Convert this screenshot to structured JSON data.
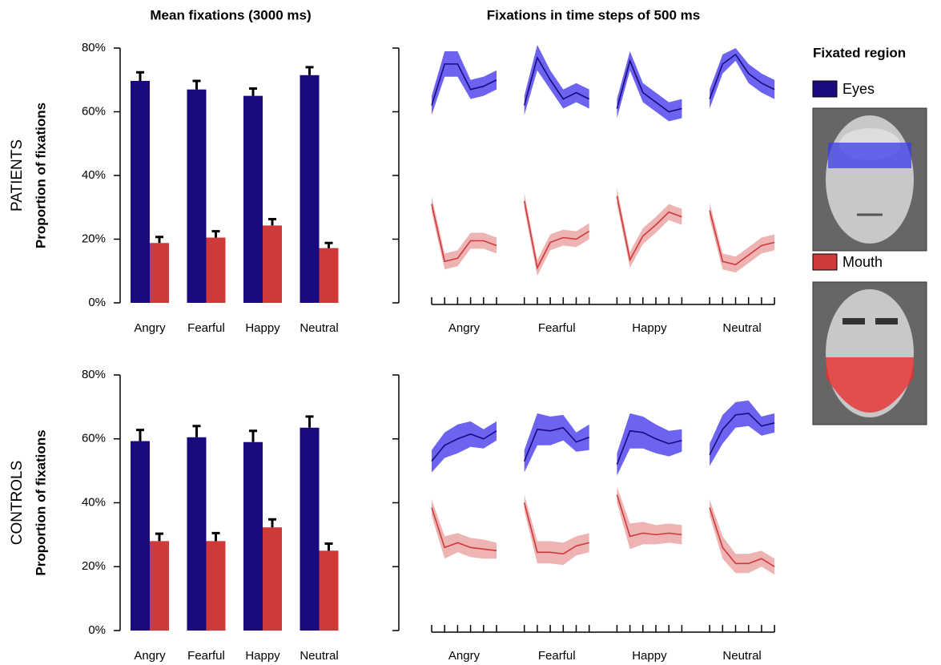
{
  "legend": {
    "title": "Fixated region"
  },
  "chart_data": [
    {
      "type": "bar",
      "title": "Mean fixations (3000 ms)",
      "row_label": "PATIENTS",
      "y_label": "Proportion of fixations",
      "categories": [
        "Angry",
        "Fearful",
        "Happy",
        "Neutral"
      ],
      "series": [
        {
          "name": "Eyes",
          "color": "#1a0a80",
          "values": [
            69.7,
            67,
            65,
            71.5
          ],
          "errors": [
            2.7,
            2.7,
            2.3,
            2.5
          ]
        },
        {
          "name": "Mouth",
          "color": "#d0393a",
          "values": [
            18.8,
            20.5,
            24.3,
            17.2
          ],
          "errors": [
            1.9,
            2,
            2,
            1.6
          ]
        }
      ],
      "ylim": [
        0,
        80
      ],
      "yticks": [
        {
          "value": 0,
          "label": "0%"
        },
        {
          "value": 20,
          "label": "20%"
        },
        {
          "value": 40,
          "label": "40%"
        },
        {
          "value": 60,
          "label": "60%"
        },
        {
          "value": 80,
          "label": "80%"
        }
      ]
    },
    {
      "type": "line",
      "title": "Fixations in time steps of 500 ms",
      "categories": [
        "Angry",
        "Fearful",
        "Happy",
        "Neutral"
      ],
      "series": [
        {
          "color": "#1a0a80",
          "band_color": "#5348ee",
          "values": [
            [
              62,
              75,
              75,
              67,
              68,
              70
            ],
            [
              62,
              77,
              70,
              64,
              66,
              64
            ],
            [
              61,
              76,
              66,
              63,
              60,
              61
            ],
            [
              64,
              75,
              78,
              72,
              69,
              67
            ]
          ],
          "errors": [
            [
              3,
              4,
              4,
              3,
              3,
              3
            ],
            [
              3,
              4,
              3,
              3,
              3,
              3
            ],
            [
              3,
              3,
              3,
              3,
              3,
              3
            ],
            [
              3,
              3,
              2,
              3,
              3,
              3
            ]
          ]
        },
        {
          "color": "#d0393a",
          "band_color": "#eba6a6",
          "values": [
            [
              31,
              13,
              14,
              19.5,
              19.5,
              18
            ],
            [
              32,
              11,
              19,
              20.5,
              20,
              22.5
            ],
            [
              33.5,
              13.5,
              21,
              24.5,
              28.5,
              27
            ],
            [
              29,
              13,
              12,
              15,
              18,
              19
            ]
          ],
          "errors": [
            [
              2.5,
              2.5,
              2.5,
              2.5,
              2.5,
              2.5
            ],
            [
              2.5,
              2.5,
              2.5,
              2.5,
              2.5,
              2.5
            ],
            [
              2.5,
              2.5,
              2.5,
              2.5,
              2.5,
              2.5
            ],
            [
              2.5,
              2.5,
              2.5,
              2.5,
              2.5,
              2.5
            ]
          ]
        }
      ],
      "ylim": [
        0,
        80
      ],
      "yticks": [
        0,
        20,
        40,
        60,
        80
      ]
    },
    {
      "type": "bar",
      "row_label": "CONTROLS",
      "y_label": "Proportion of fixations",
      "categories": [
        "Angry",
        "Fearful",
        "Happy",
        "Neutral"
      ],
      "series": [
        {
          "color": "#1a0a80",
          "values": [
            59.3,
            60.5,
            59,
            63.5
          ],
          "errors": [
            3.5,
            3.5,
            3.5,
            3.5
          ]
        },
        {
          "color": "#d0393a",
          "values": [
            28,
            28,
            32.3,
            25
          ],
          "errors": [
            2.3,
            2.5,
            2.5,
            2.2
          ]
        }
      ],
      "ylim": [
        0,
        80
      ],
      "yticks": [
        {
          "value": 0,
          "label": "0%"
        },
        {
          "value": 20,
          "label": "20%"
        },
        {
          "value": 40,
          "label": "40%"
        },
        {
          "value": 60,
          "label": "60%"
        },
        {
          "value": 80,
          "label": "80%"
        }
      ]
    },
    {
      "type": "line",
      "categories": [
        "Angry",
        "Fearful",
        "Happy",
        "Neutral"
      ],
      "series": [
        {
          "color": "#1a0a80",
          "band_color": "#5348ee",
          "values": [
            [
              53,
              58,
              60,
              61.5,
              60,
              62.5
            ],
            [
              53,
              63,
              62.5,
              63.5,
              59,
              60.5
            ],
            [
              52,
              62.5,
              62,
              60,
              58.5,
              59.5
            ],
            [
              55,
              63,
              67.5,
              68,
              64,
              65
            ]
          ],
          "errors": [
            [
              3.5,
              4,
              4.5,
              4,
              3,
              3
            ],
            [
              3.5,
              5,
              4.5,
              4,
              3,
              4
            ],
            [
              3.5,
              5.5,
              5,
              4.5,
              4,
              3.5
            ],
            [
              3.5,
              4.5,
              4,
              4,
              3,
              3
            ]
          ]
        },
        {
          "color": "#d0393a",
          "band_color": "#eba6a6",
          "values": [
            [
              38.5,
              26,
              27.5,
              26,
              25.5,
              25
            ],
            [
              40,
              24.5,
              24.5,
              24,
              26.5,
              27.5
            ],
            [
              42.5,
              29.5,
              30.5,
              30,
              30.5,
              30
            ],
            [
              38.5,
              26,
              21,
              21,
              22.5,
              20
            ]
          ],
          "errors": [
            [
              2.5,
              3.5,
              3,
              3,
              3,
              2.5
            ],
            [
              2.5,
              3.5,
              3.5,
              3.5,
              3,
              3
            ],
            [
              2.5,
              4,
              3.5,
              3,
              3,
              3
            ],
            [
              2.5,
              3.5,
              3,
              3,
              2.5,
              2.5
            ]
          ]
        }
      ],
      "ylim": [
        0,
        80
      ],
      "yticks": [
        0,
        20,
        40,
        60,
        80
      ]
    }
  ]
}
